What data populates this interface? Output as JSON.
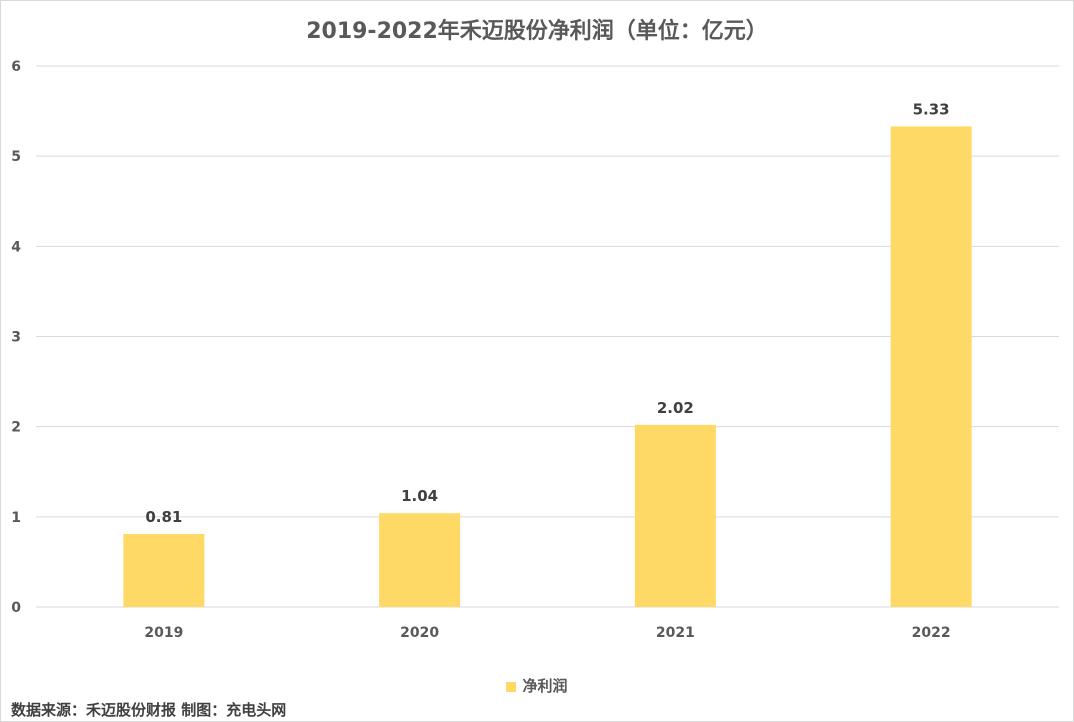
{
  "chart_data": {
    "type": "bar",
    "title": "2019-2022年禾迈股份净利润（单位：亿元）",
    "categories": [
      "2019",
      "2020",
      "2021",
      "2022"
    ],
    "series": [
      {
        "name": "净利润",
        "values": [
          0.81,
          1.04,
          2.02,
          5.33
        ]
      }
    ],
    "data_labels": [
      "0.81",
      "1.04",
      "2.02",
      "5.33"
    ],
    "ylim": [
      0,
      6
    ],
    "yticks": [
      0,
      1,
      2,
      3,
      4,
      5,
      6
    ],
    "grid": true,
    "legend_position": "bottom",
    "bar_color": "#FFD966",
    "xlabel": "",
    "ylabel": ""
  },
  "source_note": "数据来源：禾迈股份财报 制图：充电头网"
}
